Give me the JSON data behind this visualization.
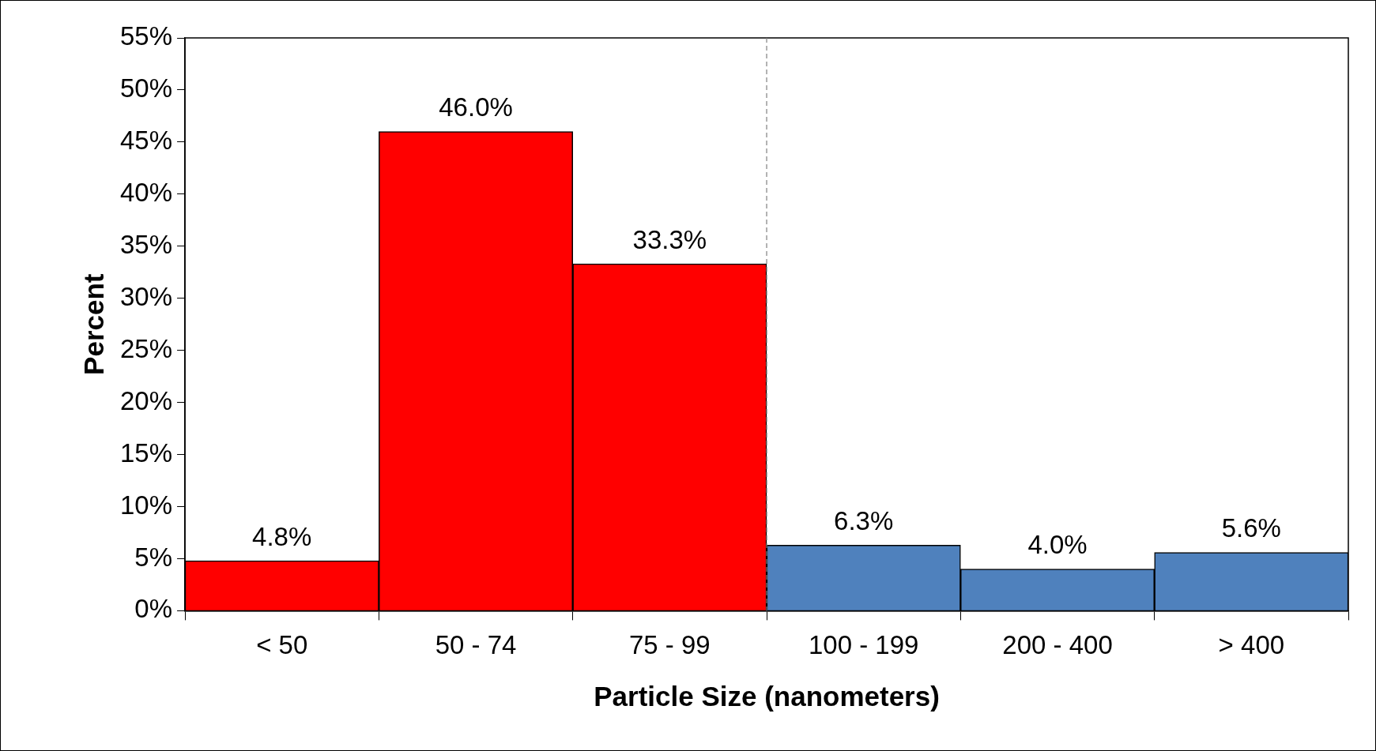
{
  "chart_data": {
    "type": "bar",
    "xlabel": "Particle Size (nanometers)",
    "ylabel": "Percent",
    "categories": [
      "< 50",
      "50 - 74",
      "75 - 99",
      "100 - 199",
      "200 - 400",
      "> 400"
    ],
    "values": [
      4.8,
      46.0,
      33.3,
      6.3,
      4.0,
      5.6
    ],
    "colors": [
      "#ff0000",
      "#ff0000",
      "#ff0000",
      "#4f81bd",
      "#4f81bd",
      "#4f81bd"
    ],
    "value_labels": [
      "4.8%",
      "46.0%",
      "33.3%",
      "6.3%",
      "4.0%",
      "5.6%"
    ],
    "ylim": [
      0,
      55
    ],
    "yticks": [
      {
        "value": 0,
        "label": "0%"
      },
      {
        "value": 5,
        "label": "5%"
      },
      {
        "value": 10,
        "label": "10%"
      },
      {
        "value": 15,
        "label": "15%"
      },
      {
        "value": 20,
        "label": "20%"
      },
      {
        "value": 25,
        "label": "25%"
      },
      {
        "value": 30,
        "label": "30%"
      },
      {
        "value": 35,
        "label": "35%"
      },
      {
        "value": 40,
        "label": "40%"
      },
      {
        "value": 45,
        "label": "45%"
      },
      {
        "value": 50,
        "label": "50%"
      },
      {
        "value": 55,
        "label": "55%"
      }
    ],
    "grid": false,
    "legend": false
  }
}
